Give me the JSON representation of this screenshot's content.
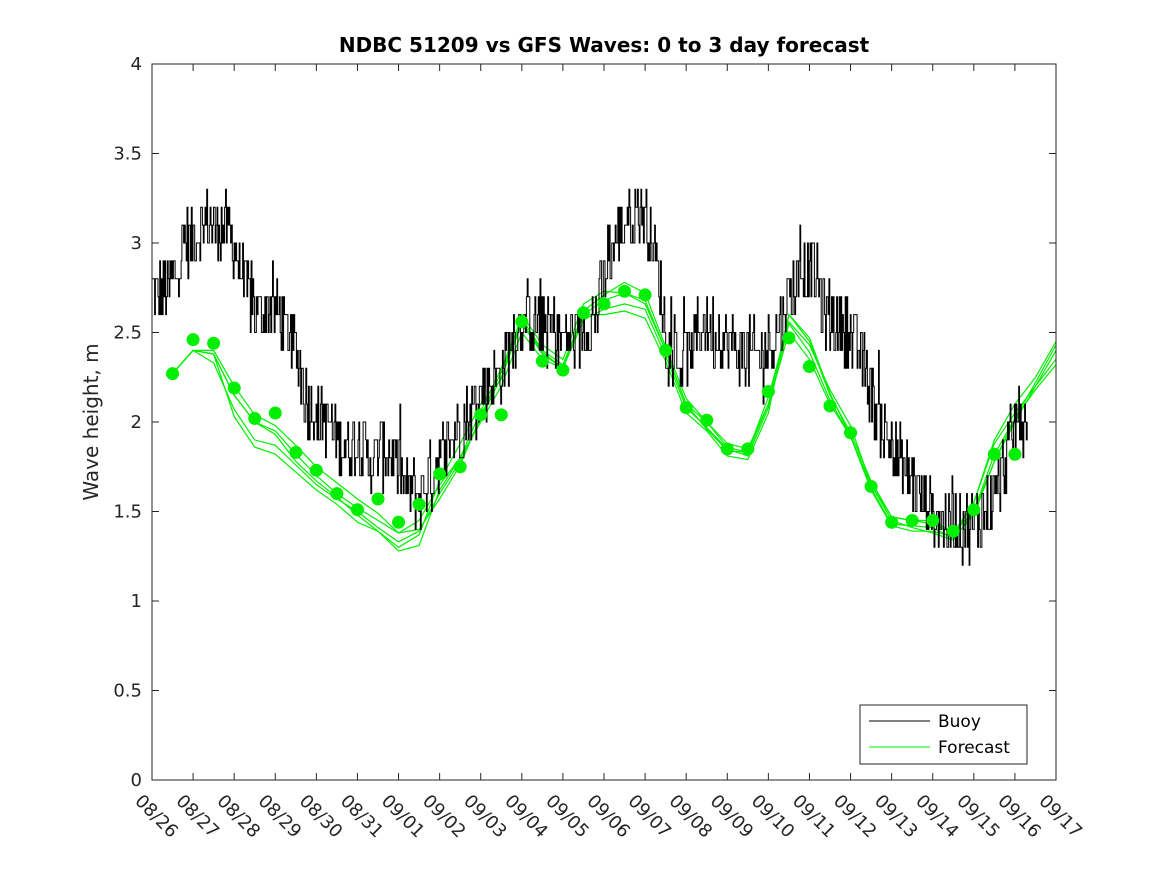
{
  "chart_data": {
    "type": "line",
    "title": "NDBC 51209 vs GFS Waves: 0 to 3 day forecast",
    "xlabel": "",
    "ylabel": "Wave height, m",
    "xlim": [
      0,
      22
    ],
    "ylim": [
      0,
      4
    ],
    "x_tick_labels": [
      "08/26",
      "08/27",
      "08/28",
      "08/29",
      "08/30",
      "08/31",
      "09/01",
      "09/02",
      "09/03",
      "09/04",
      "09/05",
      "09/06",
      "09/07",
      "09/08",
      "09/09",
      "09/10",
      "09/11",
      "09/12",
      "09/13",
      "09/14",
      "09/15",
      "09/16",
      "09/17"
    ],
    "y_ticks": [
      0,
      0.5,
      1,
      1.5,
      2,
      2.5,
      3,
      3.5,
      4
    ],
    "y_tick_labels": [
      "0",
      "0.5",
      "1",
      "1.5",
      "2",
      "2.5",
      "3",
      "3.5",
      "4"
    ],
    "legend": {
      "position": "bottom-right",
      "entries": [
        "Buoy",
        "Forecast"
      ]
    },
    "colors": {
      "buoy": "#000000",
      "forecast": "#00ee00"
    },
    "buoy_trend": {
      "x": [
        0,
        0.4,
        0.8,
        1.3,
        1.6,
        1.9,
        2.2,
        2.6,
        2.9,
        3.2,
        3.5,
        3.8,
        4.2,
        4.6,
        5.0,
        5.4,
        5.8,
        6.0,
        6.2,
        6.5,
        6.8,
        7.0,
        7.3,
        7.6,
        8.0,
        8.4,
        8.8,
        9.1,
        9.4,
        9.8,
        10.2,
        10.5,
        10.8,
        11.1,
        11.4,
        11.6,
        11.8,
        12.0,
        12.2,
        12.5,
        12.8,
        13.1,
        13.4,
        13.7,
        14.0,
        14.4,
        14.8,
        15.2,
        15.5,
        15.8,
        16.1,
        16.4,
        16.8,
        17.2,
        17.6,
        18.0,
        18.4,
        18.8,
        19.2,
        19.6,
        20.0,
        20.3,
        20.6,
        20.9,
        21.1,
        21.3
      ],
      "y": [
        2.7,
        2.75,
        3.0,
        3.1,
        3.1,
        3.05,
        2.8,
        2.6,
        2.65,
        2.55,
        2.4,
        2.1,
        2.0,
        1.9,
        1.85,
        1.8,
        1.85,
        1.75,
        1.6,
        1.6,
        1.7,
        1.8,
        1.9,
        2.0,
        2.15,
        2.25,
        2.5,
        2.6,
        2.55,
        2.5,
        2.45,
        2.5,
        2.6,
        2.9,
        3.1,
        3.15,
        3.2,
        3.15,
        3.0,
        2.5,
        2.3,
        2.4,
        2.55,
        2.5,
        2.45,
        2.4,
        2.35,
        2.5,
        2.7,
        2.85,
        2.85,
        2.6,
        2.55,
        2.4,
        2.1,
        1.85,
        1.7,
        1.55,
        1.45,
        1.42,
        1.42,
        1.5,
        1.65,
        1.9,
        2.05,
        2.0
      ]
    },
    "forecast_markers": {
      "x": [
        0.5,
        1.0,
        1.5,
        2.0,
        2.5,
        3.0,
        3.5,
        4.0,
        4.5,
        5.0,
        5.5,
        6.0,
        6.5,
        7.0,
        7.5,
        8.0,
        8.5,
        9.0,
        9.5,
        10.0,
        10.5,
        11.0,
        11.5,
        12.0,
        12.5,
        13.0,
        13.5,
        14.0,
        14.5,
        15.0,
        15.5,
        16.0,
        16.5,
        17.0,
        17.5,
        18.0,
        18.5,
        19.0,
        19.5,
        20.0,
        20.5,
        21.0
      ],
      "y": [
        2.27,
        2.46,
        2.44,
        2.19,
        2.02,
        2.05,
        1.83,
        1.73,
        1.6,
        1.51,
        1.57,
        1.44,
        1.54,
        1.71,
        1.75,
        2.04,
        2.04,
        2.56,
        2.34,
        2.29,
        2.61,
        2.66,
        2.73,
        2.71,
        2.4,
        2.08,
        2.01,
        1.85,
        1.85,
        2.17,
        2.47,
        2.31,
        2.09,
        1.94,
        1.64,
        1.44,
        1.45,
        1.45,
        1.39,
        1.51,
        1.82,
        1.82
      ]
    },
    "forecast_lines": {
      "x": [
        0.5,
        1.0,
        1.5,
        2.0,
        2.5,
        3.0,
        3.5,
        4.0,
        4.5,
        5.0,
        5.5,
        6.0,
        6.5,
        7.0,
        7.5,
        8.0,
        8.5,
        9.0,
        9.5,
        10.0,
        10.5,
        11.0,
        11.5,
        12.0,
        12.5,
        13.0,
        13.5,
        14.0,
        14.5,
        15.0,
        15.5,
        16.0,
        16.5,
        17.0,
        17.5,
        18.0,
        18.5,
        19.0,
        19.5,
        20.0,
        20.5,
        21.0,
        21.5,
        22.0
      ],
      "base": [
        2.27,
        2.4,
        2.38,
        2.15,
        2.0,
        1.95,
        1.82,
        1.7,
        1.6,
        1.52,
        1.45,
        1.38,
        1.45,
        1.65,
        1.8,
        2.0,
        2.2,
        2.5,
        2.35,
        2.3,
        2.6,
        2.68,
        2.72,
        2.68,
        2.4,
        2.1,
        2.0,
        1.88,
        1.85,
        2.1,
        2.5,
        2.35,
        2.1,
        1.92,
        1.65,
        1.47,
        1.45,
        1.43,
        1.38,
        1.5,
        1.78,
        2.0,
        2.2,
        2.4
      ],
      "offsets": [
        [
          0,
          0,
          0,
          0,
          0,
          0,
          0,
          0,
          0,
          0,
          0,
          0,
          0,
          0,
          0,
          0,
          0,
          0,
          0,
          0,
          0,
          0,
          0,
          0,
          0,
          0,
          0,
          0,
          0,
          0,
          0,
          0,
          0,
          0,
          0,
          0,
          0,
          0,
          0,
          0,
          0,
          0,
          0,
          0
        ],
        [
          0,
          0,
          -0.05,
          -0.08,
          -0.1,
          -0.08,
          -0.06,
          -0.05,
          -0.03,
          -0.02,
          -0.04,
          -0.05,
          -0.06,
          -0.05,
          -0.02,
          0.02,
          0.05,
          0.05,
          0.03,
          0.0,
          -0.03,
          -0.05,
          -0.06,
          -0.05,
          -0.03,
          -0.02,
          -0.03,
          -0.03,
          -0.04,
          -0.02,
          0.05,
          0.04,
          0.02,
          0.0,
          -0.02,
          -0.04,
          -0.03,
          -0.02,
          -0.03,
          -0.02,
          0.0,
          0.02,
          0.02,
          0.03
        ],
        [
          0,
          0,
          0.02,
          0.05,
          0.04,
          0.03,
          0.05,
          0.05,
          0.06,
          0.05,
          0.04,
          0.0,
          -0.05,
          -0.08,
          -0.04,
          0.03,
          0.08,
          0.06,
          0.04,
          0.0,
          0.02,
          0.03,
          0.06,
          0.04,
          0.02,
          0.03,
          0.0,
          -0.02,
          -0.02,
          0.0,
          0.1,
          0.1,
          0.05,
          0.02,
          0.02,
          0.0,
          0.0,
          0.02,
          0.0,
          0.05,
          0.1,
          0.05,
          0.0,
          -0.05
        ],
        [
          0,
          0,
          0,
          -0.12,
          -0.14,
          -0.13,
          -0.1,
          -0.08,
          -0.06,
          -0.08,
          -0.06,
          -0.1,
          -0.14,
          -0.03,
          0.0,
          0.06,
          0.1,
          0.08,
          0.05,
          0.02,
          0.0,
          -0.08,
          -0.1,
          -0.1,
          -0.06,
          -0.05,
          -0.05,
          -0.07,
          -0.06,
          -0.05,
          0.1,
          0.12,
          0.06,
          0.0,
          -0.03,
          -0.05,
          -0.06,
          -0.04,
          -0.02,
          0.05,
          0.12,
          0.1,
          0.05,
          0.05
        ],
        [
          0,
          0,
          0,
          0,
          0,
          -0.02,
          -0.04,
          -0.03,
          -0.02,
          -0.04,
          -0.06,
          -0.08,
          -0.08,
          0.02,
          0.08,
          0.1,
          0.04,
          0.1,
          0.08,
          0.05,
          0.06,
          0.05,
          0.0,
          -0.02,
          0.0,
          0.0,
          -0.04,
          -0.04,
          -0.02,
          0.04,
          0.06,
          0.08,
          0.08,
          0.06,
          0.0,
          -0.02,
          -0.04,
          -0.05,
          -0.04,
          0.0,
          0.04,
          0.02,
          -0.02,
          -0.08
        ]
      ]
    }
  }
}
